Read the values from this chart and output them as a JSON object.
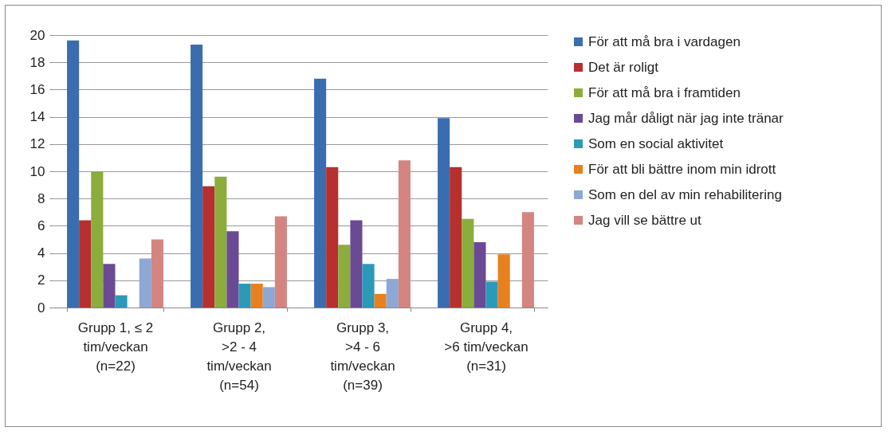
{
  "chart_data": {
    "type": "bar",
    "categories": [
      "Grupp 1, ≤ 2\ntim/veckan\n(n=22)",
      "Grupp 2,\n>2 - 4\ntim/veckan\n(n=54)",
      "Grupp 3,\n>4 - 6\ntim/veckan\n(n=39)",
      "Grupp 4,\n>6 tim/veckan\n(n=31)"
    ],
    "series": [
      {
        "name": "För att må bra i vardagen",
        "color": "#3a6db0",
        "values": [
          19.6,
          19.3,
          16.8,
          13.9
        ]
      },
      {
        "name": "Det är roligt",
        "color": "#b5302f",
        "values": [
          6.4,
          8.9,
          10.3,
          10.3
        ]
      },
      {
        "name": "För att må bra i framtiden",
        "color": "#8aad3c",
        "values": [
          10.0,
          9.6,
          4.6,
          6.5
        ]
      },
      {
        "name": "Jag mår dåligt när jag inte tränar",
        "color": "#6a4a94",
        "values": [
          3.2,
          5.6,
          6.4,
          4.8
        ]
      },
      {
        "name": "Som en social aktivitet",
        "color": "#2a9ab8",
        "values": [
          0.9,
          1.75,
          3.2,
          1.9
        ]
      },
      {
        "name": "För att bli bättre inom min idrott",
        "color": "#e9801f",
        "values": [
          0,
          1.75,
          1.0,
          3.9
        ]
      },
      {
        "name": "Som en del av min rehabilitering",
        "color": "#8ea8d6",
        "values": [
          3.6,
          1.5,
          2.1,
          0
        ]
      },
      {
        "name": "Jag vill se bättre ut",
        "color": "#d48581",
        "values": [
          5.0,
          6.7,
          10.8,
          7.0
        ]
      }
    ],
    "ylim": [
      0,
      20
    ],
    "yticks": [
      0,
      2,
      4,
      6,
      8,
      10,
      12,
      14,
      16,
      18,
      20
    ],
    "grid": "y",
    "legend": "right"
  }
}
